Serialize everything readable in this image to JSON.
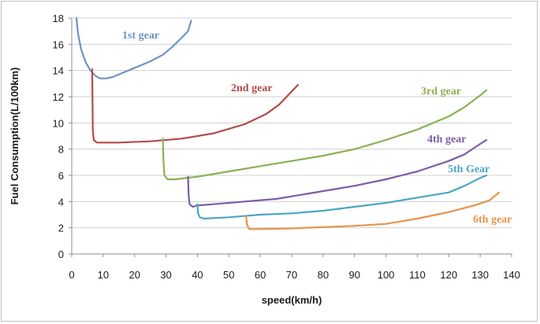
{
  "chart_data": {
    "type": "line",
    "xlabel": "speed(km/h)",
    "ylabel": "Fuel Consumption(L/100km)",
    "xlim": [
      0,
      140
    ],
    "ylim": [
      0,
      18
    ],
    "xticks": [
      0,
      10,
      20,
      30,
      40,
      50,
      60,
      70,
      80,
      90,
      100,
      110,
      120,
      130,
      140
    ],
    "yticks": [
      0,
      2,
      4,
      6,
      8,
      10,
      12,
      14,
      16,
      18
    ],
    "grid": "horizontal",
    "legend": "inline labels",
    "series": [
      {
        "name": "1st gear",
        "color": "#6f95c4",
        "points": [
          [
            1.5,
            18
          ],
          [
            2,
            16.8
          ],
          [
            3,
            15.6
          ],
          [
            4.5,
            14.6
          ],
          [
            6,
            14.0
          ],
          [
            7.5,
            13.6
          ],
          [
            9,
            13.4
          ],
          [
            11,
            13.4
          ],
          [
            13,
            13.5
          ],
          [
            17,
            13.9
          ],
          [
            21,
            14.3
          ],
          [
            25,
            14.7
          ],
          [
            29,
            15.2
          ],
          [
            32,
            15.8
          ],
          [
            35,
            16.5
          ],
          [
            37,
            17.0
          ],
          [
            38,
            17.8
          ]
        ]
      },
      {
        "name": "2nd gear",
        "color": "#b34a48",
        "points": [
          [
            6.5,
            14.1
          ],
          [
            6.6,
            12
          ],
          [
            6.7,
            9.5
          ],
          [
            7,
            8.7
          ],
          [
            8,
            8.5
          ],
          [
            15,
            8.5
          ],
          [
            25,
            8.6
          ],
          [
            35,
            8.8
          ],
          [
            45,
            9.2
          ],
          [
            55,
            9.9
          ],
          [
            62,
            10.7
          ],
          [
            66,
            11.4
          ],
          [
            70,
            12.4
          ],
          [
            72,
            12.9
          ]
        ]
      },
      {
        "name": "3rd gear",
        "color": "#8bb152",
        "points": [
          [
            29,
            8.8
          ],
          [
            29.2,
            7
          ],
          [
            29.5,
            6.0
          ],
          [
            30.5,
            5.7
          ],
          [
            33,
            5.7
          ],
          [
            40,
            5.9
          ],
          [
            50,
            6.3
          ],
          [
            60,
            6.7
          ],
          [
            70,
            7.1
          ],
          [
            80,
            7.5
          ],
          [
            90,
            8.0
          ],
          [
            100,
            8.7
          ],
          [
            110,
            9.5
          ],
          [
            120,
            10.5
          ],
          [
            125,
            11.2
          ],
          [
            130,
            12.1
          ],
          [
            132,
            12.5
          ]
        ]
      },
      {
        "name": "4th gear",
        "color": "#7a5ea6",
        "points": [
          [
            37,
            5.9
          ],
          [
            37.2,
            4.5
          ],
          [
            37.5,
            3.8
          ],
          [
            38.5,
            3.6
          ],
          [
            40,
            3.7
          ],
          [
            45,
            3.8
          ],
          [
            55,
            4.0
          ],
          [
            65,
            4.2
          ],
          [
            70,
            4.4
          ],
          [
            80,
            4.8
          ],
          [
            90,
            5.2
          ],
          [
            100,
            5.7
          ],
          [
            110,
            6.3
          ],
          [
            120,
            7.1
          ],
          [
            125,
            7.6
          ],
          [
            130,
            8.4
          ],
          [
            132,
            8.7
          ]
        ]
      },
      {
        "name": "5th Gear",
        "color": "#4ba6c3",
        "points": [
          [
            40,
            3.8
          ],
          [
            40.2,
            3.1
          ],
          [
            40.8,
            2.8
          ],
          [
            42,
            2.7
          ],
          [
            50,
            2.8
          ],
          [
            60,
            3.0
          ],
          [
            70,
            3.1
          ],
          [
            80,
            3.3
          ],
          [
            90,
            3.6
          ],
          [
            100,
            3.9
          ],
          [
            110,
            4.3
          ],
          [
            120,
            4.7
          ],
          [
            125,
            5.2
          ],
          [
            130,
            5.8
          ],
          [
            132,
            6.0
          ]
        ]
      },
      {
        "name": "6th gear",
        "color": "#e6934a",
        "points": [
          [
            55.5,
            2.9
          ],
          [
            55.8,
            2.2
          ],
          [
            56.5,
            1.9
          ],
          [
            60,
            1.9
          ],
          [
            70,
            1.95
          ],
          [
            80,
            2.05
          ],
          [
            90,
            2.15
          ],
          [
            100,
            2.3
          ],
          [
            110,
            2.7
          ],
          [
            120,
            3.2
          ],
          [
            128,
            3.7
          ],
          [
            133,
            4.1
          ],
          [
            136,
            4.7
          ]
        ]
      }
    ]
  }
}
